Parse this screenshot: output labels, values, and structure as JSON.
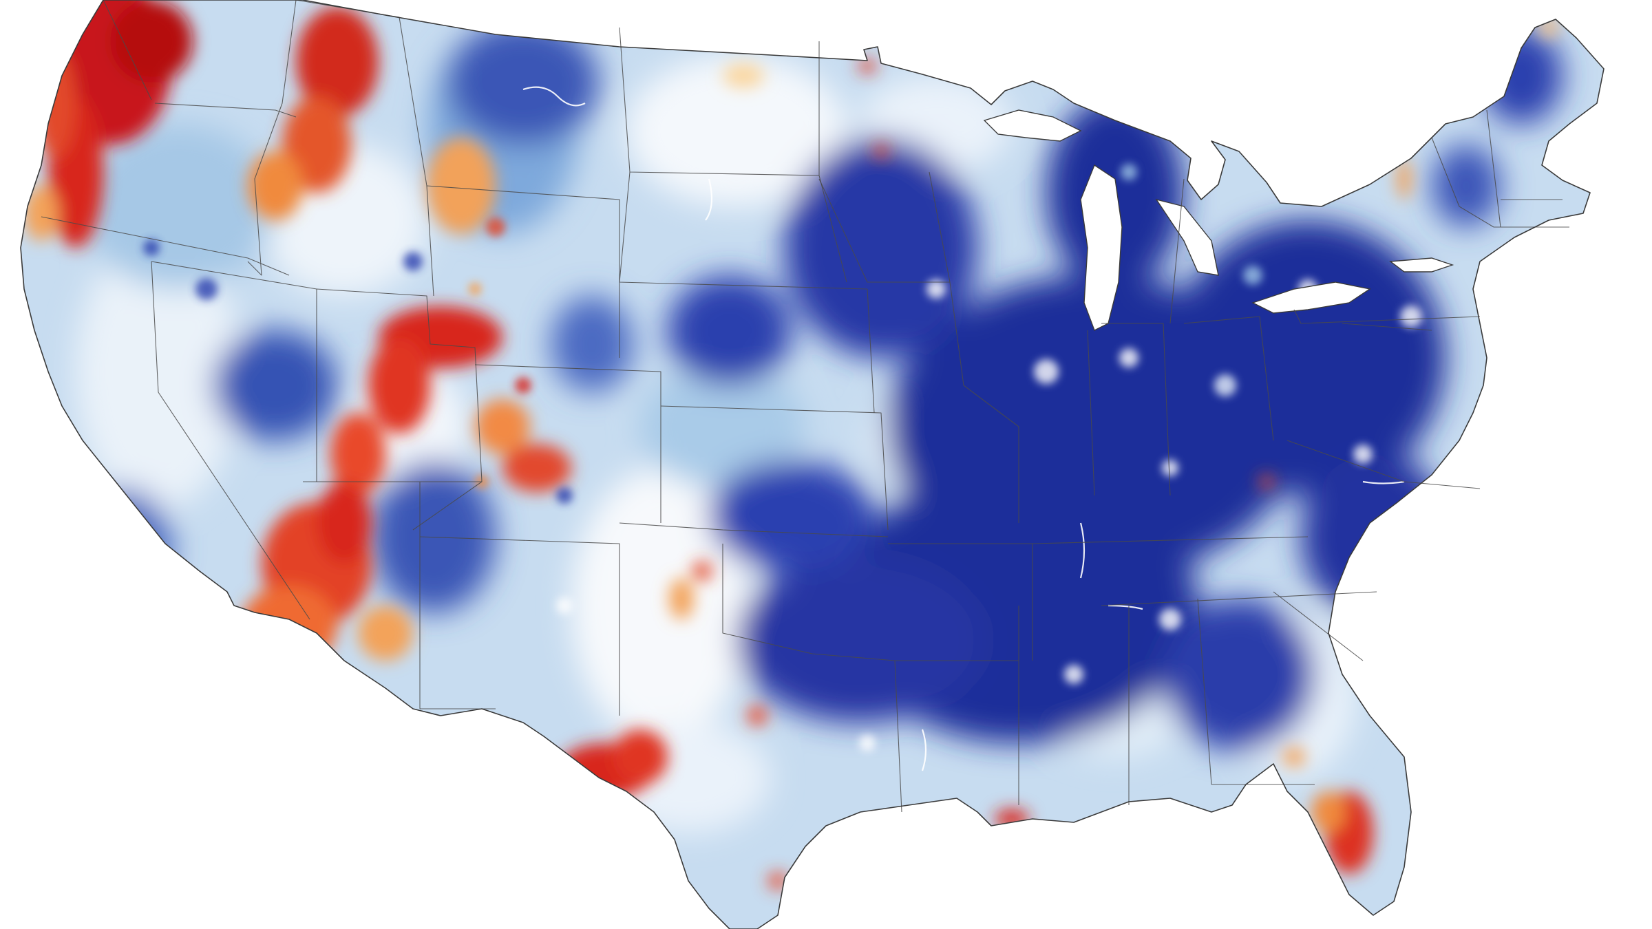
{
  "map": {
    "region": "contiguous-united-states",
    "legend_visible": false,
    "colors": {
      "background": "#ffffff",
      "deep_blue": "#1f2f9a",
      "mid_blue": "#3b6fc0",
      "light_blue": "#9ec5e6",
      "pale_blue": "#d9e9f6",
      "pale_orange": "#fbd7a0",
      "orange": "#f08a3c",
      "red": "#d8261b",
      "dark_red": "#b50e10",
      "border": "#3a3a3a"
    },
    "icons": []
  }
}
